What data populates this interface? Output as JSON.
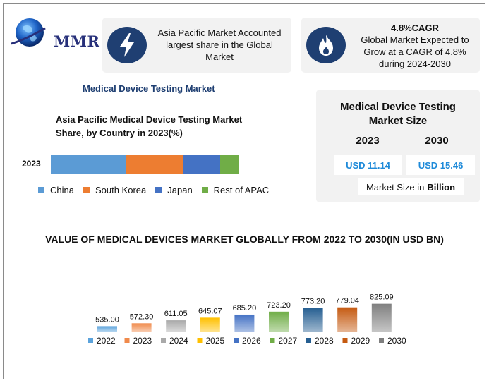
{
  "brand": {
    "logo_text": "MMR"
  },
  "info_cards": [
    {
      "icon": "lightning-bolt-icon",
      "heading": "",
      "text": "Asia Pacific Market Accounted largest share in the Global Market"
    },
    {
      "icon": "flame-icon",
      "heading": "4.8%CAGR",
      "text": "Global Market Expected to Grow at a CAGR of 4.8% during 2024-2030"
    }
  ],
  "section_title": "Medical Device Testing Market",
  "share_chart": {
    "title_line1": "Asia Pacific Medical Device Testing Market",
    "title_line2": "Share, by Country in 2023(%)",
    "year_label": "2023",
    "segments": [
      {
        "name": "China",
        "share": 40,
        "color": "#5b9bd5"
      },
      {
        "name": "South Korea",
        "share": 30,
        "color": "#ed7d31"
      },
      {
        "name": "Japan",
        "share": 20,
        "color": "#4472c4"
      },
      {
        "name": "Rest of APAC",
        "share": 10,
        "color": "#70ad47"
      }
    ]
  },
  "market_size": {
    "title_line1": "Medical Device Testing",
    "title_line2": "Market Size",
    "year_start": "2023",
    "year_end": "2030",
    "value_start": "USD 11.14",
    "value_end": "USD 15.46",
    "unit_prefix": "Market Size in",
    "unit_bold": "Billion",
    "value_color": "#1e8ad9"
  },
  "chart_data": {
    "type": "bar",
    "title": "VALUE OF MEDICAL DEVICES MARKET GLOBALLY FROM 2022 TO 2030(IN USD BN)",
    "categories": [
      "2022",
      "2023",
      "2024",
      "2025",
      "2026",
      "2027",
      "2028",
      "2029",
      "2030"
    ],
    "values": [
      535.0,
      572.3,
      611.05,
      645.07,
      685.2,
      723.2,
      773.2,
      779.04,
      825.09
    ],
    "value_labels": [
      "535.00",
      "572.30",
      "611.05",
      "645.07",
      "685.20",
      "723.20",
      "773.20",
      "779.04",
      "825.09"
    ],
    "colors": [
      "#5ba3dc",
      "#f08a4b",
      "#a9a9a9",
      "#ffc000",
      "#4472c4",
      "#70ad47",
      "#255e91",
      "#c55a11",
      "#7f7f7f"
    ],
    "xlabel": "",
    "ylabel": "",
    "legend": "bottom",
    "grid": false
  }
}
